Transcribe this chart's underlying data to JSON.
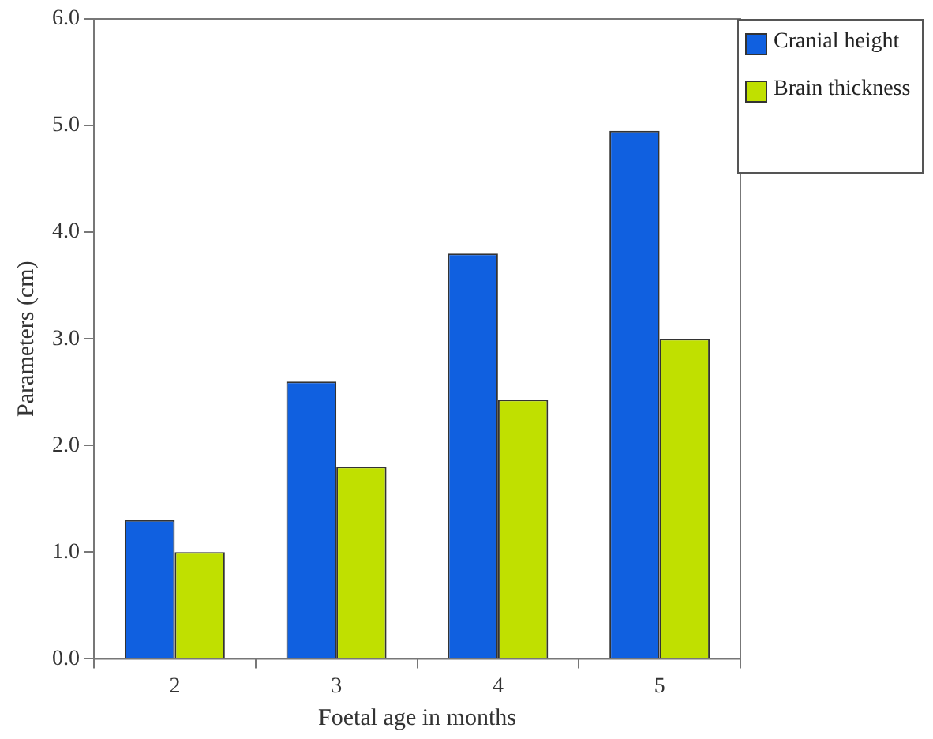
{
  "chart_data": {
    "type": "bar",
    "xlabel": "Foetal age in months",
    "ylabel": "Parameters (cm)",
    "categories": [
      "2",
      "3",
      "4",
      "5"
    ],
    "series": [
      {
        "name": "Cranial height",
        "color": "#1060e0",
        "values": [
          1.3,
          2.6,
          3.8,
          4.95
        ]
      },
      {
        "name": "Brain thickness",
        "color": "#c0e000",
        "values": [
          1.0,
          1.8,
          2.43,
          3.0
        ]
      }
    ],
    "ylim": [
      0,
      6
    ],
    "yticks": [
      {
        "value": 0,
        "label": "0.0"
      },
      {
        "value": 1,
        "label": "1.0"
      },
      {
        "value": 2,
        "label": "2.0"
      },
      {
        "value": 3,
        "label": "3.0"
      },
      {
        "value": 4,
        "label": "4.0"
      },
      {
        "value": 5,
        "label": "5.0"
      },
      {
        "value": 6,
        "label": "6.0"
      }
    ],
    "grid": false,
    "legend": "top right"
  }
}
